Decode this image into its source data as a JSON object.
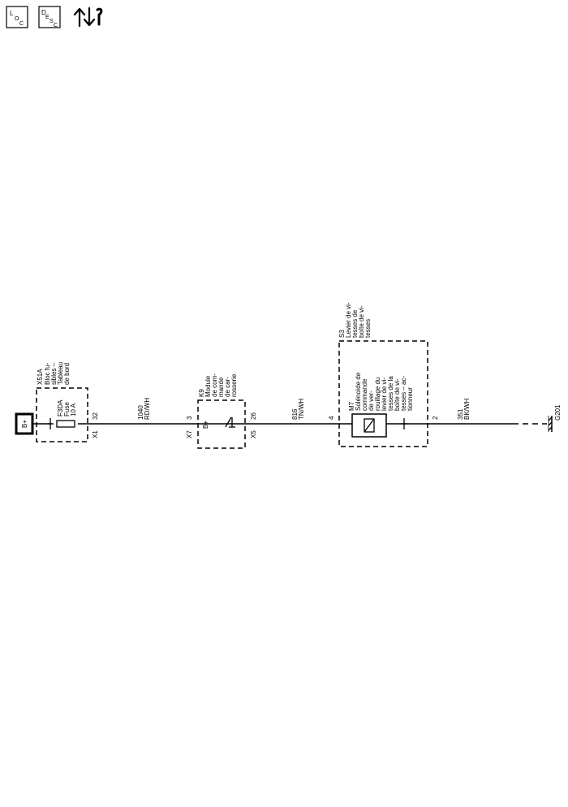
{
  "header_icons": {
    "loc": {
      "top": "L",
      "sub1": "O",
      "sub2": "C"
    },
    "desc": {
      "top": "D",
      "sub1": "E",
      "sub2": "S",
      "sub3": "C"
    }
  },
  "battery": {
    "label": "B+"
  },
  "fuse_block": {
    "id": "X51A",
    "name_lines": [
      "Bloc fu-",
      "sibles –",
      "Tableau",
      "de bord"
    ],
    "fuse_lines": [
      "F3DA",
      "Fuse",
      "10 A"
    ],
    "connector": "X1",
    "pin": "32"
  },
  "wire_1": {
    "circuit": "1040",
    "color": "RD/WH"
  },
  "body_module": {
    "id": "K9",
    "name_lines": [
      "Module",
      "de com-",
      "mande",
      "de car-",
      "rosserie"
    ],
    "connector_in": "X7",
    "pin_in": "3",
    "supply_label": "B+",
    "connector_out": "X5",
    "pin_out": "26"
  },
  "wire_2": {
    "circuit": "816",
    "color": "TN/WH"
  },
  "shift_lever": {
    "id": "S3",
    "name_lines": [
      "Levier de vi-",
      "tesses de",
      "boîte de vi-",
      "tesses"
    ],
    "pin_in": "4",
    "pin_out": "2",
    "solenoid_id": "M7",
    "solenoid_lines": [
      "Solénoïde de",
      "commande",
      "de ver-",
      "rouillage du",
      "levier de vi-",
      "tesses de la",
      "boîte de vi-",
      "tesses – ac-",
      "tionneur"
    ]
  },
  "wire_3": {
    "circuit": "351",
    "color": "BK/WH"
  },
  "ground": {
    "id": "G201"
  }
}
